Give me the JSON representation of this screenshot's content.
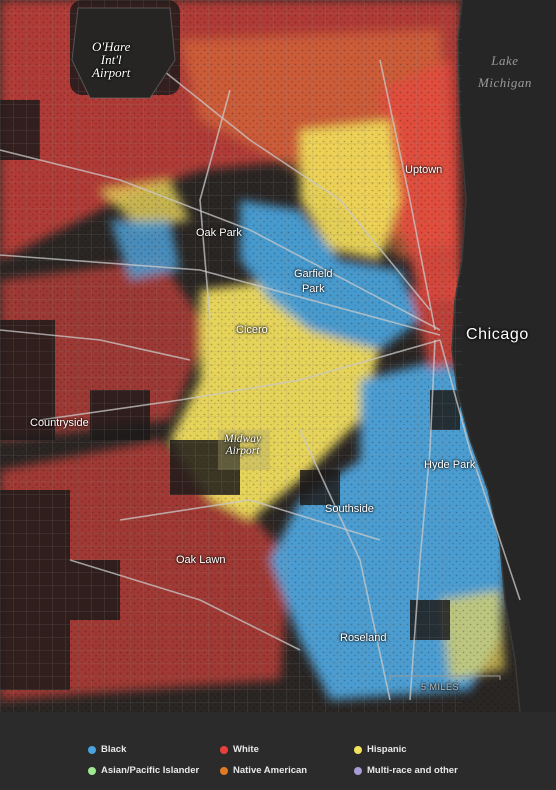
{
  "map": {
    "water_label": [
      "Lake",
      "Michigan"
    ],
    "city_label": "Chicago",
    "airport_ohare": [
      "O'Hare",
      "Int'l",
      "Airport"
    ],
    "airport_midway": [
      "Midway",
      "Airport"
    ],
    "neighborhoods": {
      "uptown": "Uptown",
      "oak_park": "Oak Park",
      "garfield_park": [
        "Garfield",
        "Park"
      ],
      "cicero": "Cicero",
      "countryside": "Countryside",
      "hyde_park": "Hyde Park",
      "southside": "Southside",
      "oak_lawn": "Oak Lawn",
      "roseland": "Roseland"
    },
    "scale_label": "5 MILES"
  },
  "legend": {
    "items": [
      {
        "label": "Black",
        "color": "#4aa3df"
      },
      {
        "label": "White",
        "color": "#e8413c"
      },
      {
        "label": "Hispanic",
        "color": "#f2e35c"
      },
      {
        "label": "Asian/Pacific Islander",
        "color": "#9ee88f"
      },
      {
        "label": "Native American",
        "color": "#e07b24"
      },
      {
        "label": "Multi-race and other",
        "color": "#a99bd6"
      }
    ]
  }
}
